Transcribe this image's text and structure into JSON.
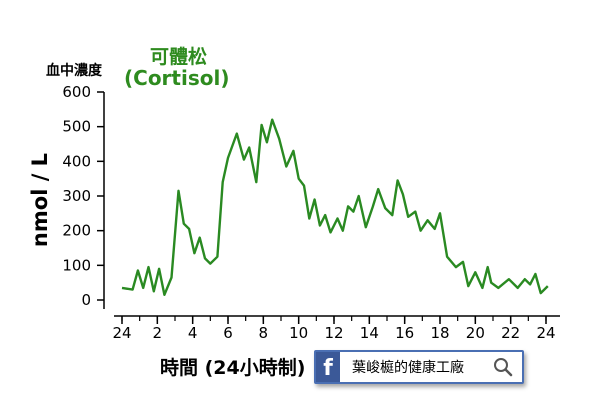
{
  "chart_data": {
    "type": "line",
    "title_line1": "可體松",
    "title_line2": "(Cortisol)",
    "y_unit_label": "血中濃度",
    "ylabel": "nmol / L",
    "xlabel": "時間 (24小時制)",
    "xlim": [
      0,
      24
    ],
    "ylim": [
      0,
      600
    ],
    "x_tick_labels": [
      "24",
      "2",
      "4",
      "6",
      "8",
      "10",
      "12",
      "14",
      "16",
      "18",
      "20",
      "22",
      "24"
    ],
    "y_tick_values": [
      0,
      100,
      200,
      300,
      400,
      500,
      600
    ],
    "grid": false,
    "line_color": "#2a8a22",
    "series": [
      {
        "x": [
          0.0,
          0.6,
          0.9,
          1.2,
          1.5,
          1.8,
          2.1,
          2.4,
          2.8,
          3.2,
          3.5,
          3.8,
          4.1,
          4.4,
          4.7,
          5.0,
          5.4,
          5.7,
          6.0,
          6.5,
          6.9,
          7.2,
          7.6,
          7.9,
          8.2,
          8.5,
          8.9,
          9.3,
          9.7,
          10.0,
          10.3,
          10.6,
          10.9,
          11.2,
          11.5,
          11.8,
          12.2,
          12.5,
          12.8,
          13.1,
          13.4,
          13.8,
          14.2,
          14.5,
          14.9,
          15.3,
          15.6,
          15.9,
          16.2,
          16.6,
          16.9,
          17.3,
          17.7,
          18.0,
          18.4,
          18.9,
          19.3,
          19.6,
          20.0,
          20.4,
          20.7,
          20.9,
          21.3,
          21.9,
          22.4,
          22.8,
          23.1,
          23.4,
          23.7,
          24.1
        ],
        "y": [
          35,
          30,
          85,
          35,
          95,
          25,
          90,
          15,
          65,
          315,
          220,
          205,
          135,
          180,
          120,
          105,
          125,
          340,
          410,
          480,
          405,
          440,
          340,
          505,
          455,
          520,
          465,
          385,
          430,
          350,
          330,
          235,
          290,
          215,
          245,
          195,
          235,
          200,
          270,
          255,
          300,
          210,
          270,
          320,
          265,
          245,
          345,
          305,
          240,
          255,
          200,
          230,
          205,
          250,
          125,
          95,
          110,
          40,
          80,
          35,
          95,
          50,
          35,
          60,
          35,
          60,
          45,
          75,
          20,
          40
        ]
      }
    ]
  },
  "footer": {
    "facebook_glyph": "f",
    "page_name": "葉峻榳的健康工廠"
  },
  "icons": [
    "facebook-icon",
    "search-icon"
  ]
}
